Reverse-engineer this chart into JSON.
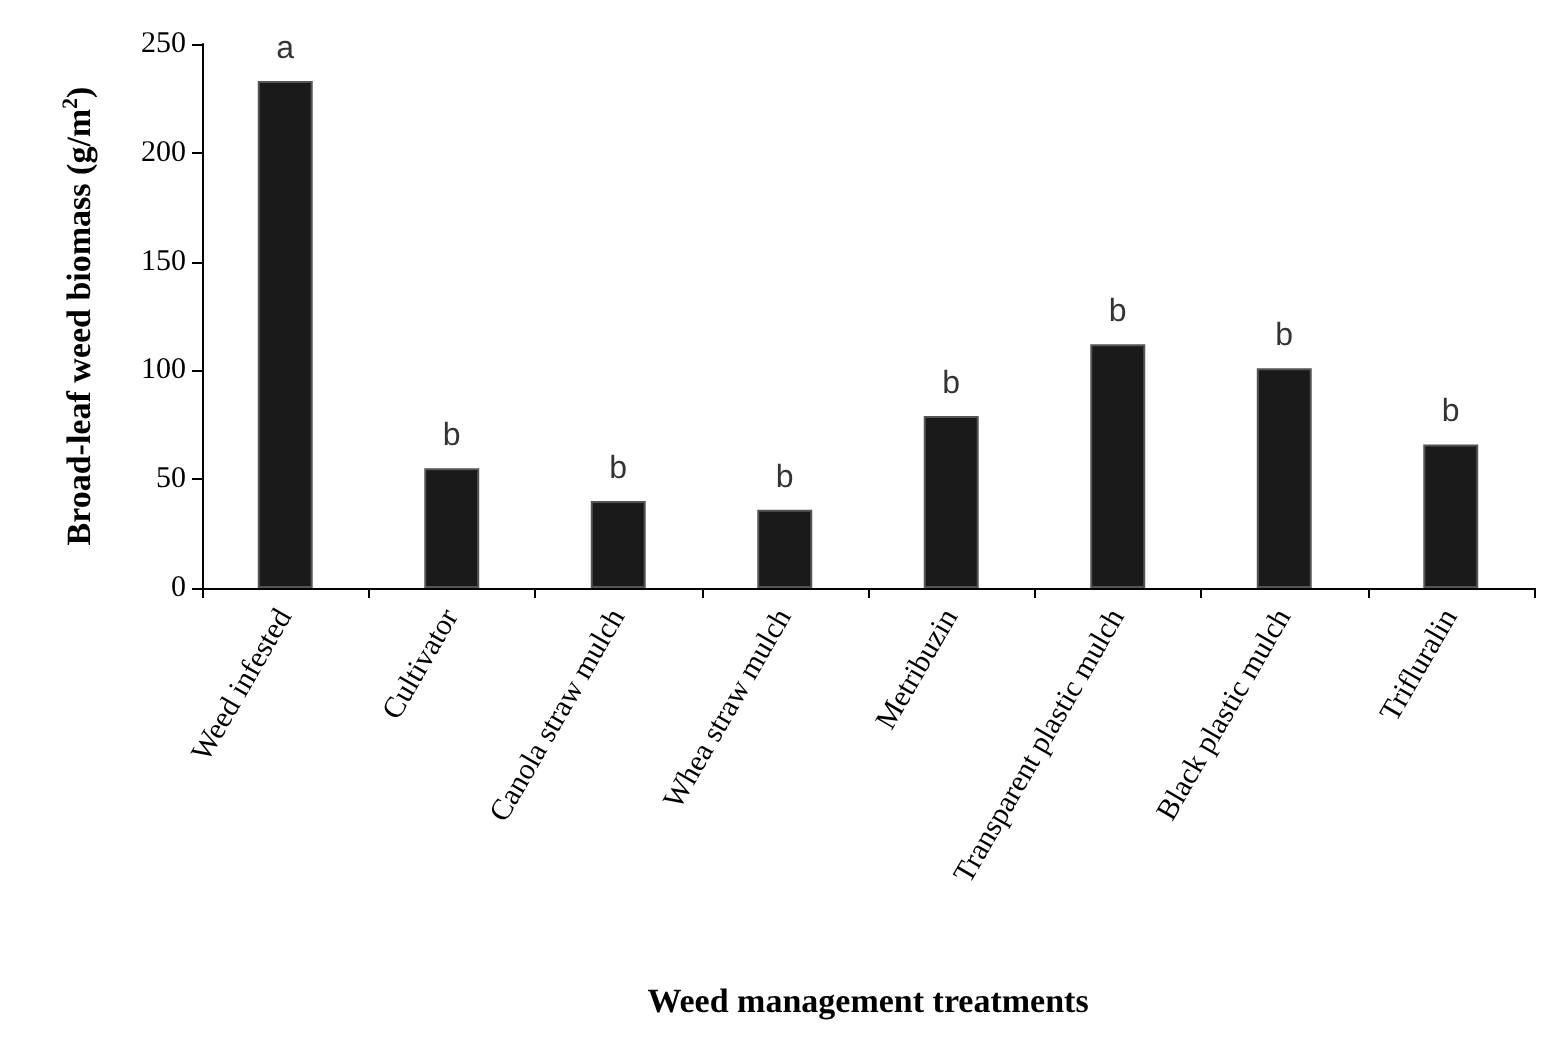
{
  "chart_data": {
    "type": "bar",
    "xlabel": "Weed management treatments",
    "ylabel": "Broad-leaf weed biomass (g/m$^{2}$)",
    "categories": [
      "Weed infested",
      "Cultivator",
      "Canola straw mulch",
      "Whea straw mulch",
      "Metribuzin",
      "Transparent plastic mulch",
      "Black plastic mulch",
      "Trifluralin"
    ],
    "values": [
      233,
      55,
      40,
      36,
      79,
      112,
      101,
      66
    ],
    "color": "#1a1a1a",
    "ylim": [
      0,
      250
    ],
    "yticks": [
      0,
      50,
      100,
      150,
      200,
      250
    ],
    "grid": false,
    "annotations": [
      {
        "text": "a",
        "x": "Weed infested",
        "y": 233
      },
      {
        "text": "b",
        "x": "Cultivator",
        "y": 55
      },
      {
        "text": "b",
        "x": "Canola straw mulch",
        "y": 40
      },
      {
        "text": "b",
        "x": "Whea straw mulch",
        "y": 36
      },
      {
        "text": "b",
        "x": "Metribuzin",
        "y": 79
      },
      {
        "text": "b",
        "x": "Transparent plastic mulch",
        "y": 112
      },
      {
        "text": "b",
        "x": "Black plastic mulch",
        "y": 101
      },
      {
        "text": "b",
        "x": "Trifluralin",
        "y": 66
      }
    ]
  }
}
